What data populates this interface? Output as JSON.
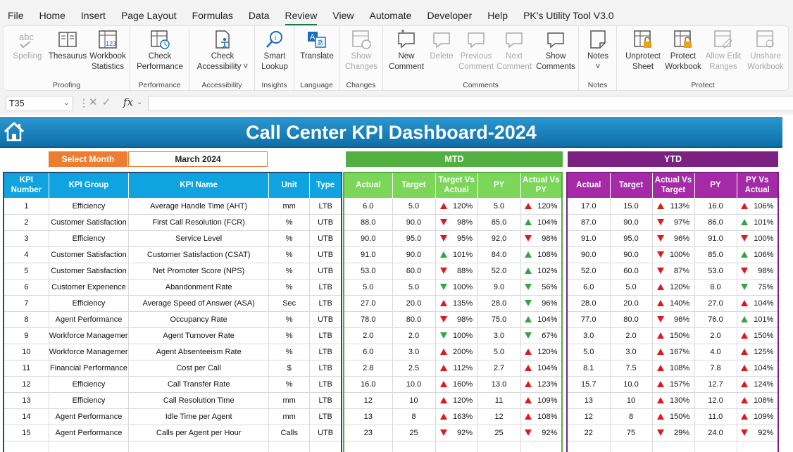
{
  "menu": [
    "File",
    "Home",
    "Insert",
    "Page Layout",
    "Formulas",
    "Data",
    "Review",
    "View",
    "Automate",
    "Developer",
    "Help",
    "PK's Utility Tool V3.0"
  ],
  "menu_active": "Review",
  "ribbon": {
    "groups": [
      {
        "name": "Proofing",
        "buttons": [
          {
            "label": "Spelling",
            "icon": "spelling-icon",
            "disabled": true
          },
          {
            "label": "Thesaurus",
            "icon": "thesaurus-icon"
          },
          {
            "label": "Workbook\nStatistics",
            "icon": "workbook-statistics-icon"
          }
        ]
      },
      {
        "name": "Performance",
        "buttons": [
          {
            "label": "Check\nPerformance",
            "icon": "check-performance-icon"
          }
        ]
      },
      {
        "name": "Accessibility",
        "buttons": [
          {
            "label": "Check\nAccessibility ˅",
            "icon": "check-accessibility-icon"
          }
        ]
      },
      {
        "name": "Insights",
        "buttons": [
          {
            "label": "Smart\nLookup",
            "icon": "smart-lookup-icon"
          }
        ]
      },
      {
        "name": "Language",
        "buttons": [
          {
            "label": "Translate",
            "icon": "translate-icon"
          }
        ]
      },
      {
        "name": "Changes",
        "buttons": [
          {
            "label": "Show\nChanges",
            "icon": "show-changes-icon",
            "disabled": true
          }
        ]
      },
      {
        "name": "Comments",
        "buttons": [
          {
            "label": "New\nComment",
            "icon": "new-comment-icon"
          },
          {
            "label": "Delete",
            "icon": "delete-comment-icon",
            "disabled": true
          },
          {
            "label": "Previous\nComment",
            "icon": "previous-comment-icon",
            "disabled": true
          },
          {
            "label": "Next\nComment",
            "icon": "next-comment-icon",
            "disabled": true
          },
          {
            "label": "Show\nComments",
            "icon": "show-comments-icon"
          }
        ]
      },
      {
        "name": "Notes",
        "buttons": [
          {
            "label": "Notes\n˅",
            "icon": "notes-icon"
          }
        ]
      },
      {
        "name": "Protect",
        "buttons": [
          {
            "label": "Unprotect\nSheet",
            "icon": "unprotect-sheet-icon"
          },
          {
            "label": "Protect\nWorkbook",
            "icon": "protect-workbook-icon"
          },
          {
            "label": "Allow Edit\nRanges",
            "icon": "allow-edit-ranges-icon",
            "disabled": true
          },
          {
            "label": "Unshare\nWorkbook",
            "icon": "unshare-workbook-icon",
            "disabled": true
          }
        ]
      }
    ]
  },
  "formula_bar": {
    "name_box": "T35",
    "fx": "fx",
    "value": ""
  },
  "dashboard": {
    "title": "Call Center KPI Dashboard-2024",
    "select_month_label": "Select Month",
    "select_month_value": "March 2024",
    "mtd_label": "MTD",
    "ytd_label": "YTD",
    "main_headers": [
      "KPI Number",
      "KPI Group",
      "KPI Name",
      "Unit",
      "Type"
    ],
    "mtd_headers": [
      "Actual",
      "Target",
      "Target Vs Actual",
      "PY",
      "Actual Vs PY"
    ],
    "ytd_headers": [
      "Actual",
      "Target",
      "Actual Vs Target",
      "PY",
      "PY Vs Actual"
    ],
    "colors": {
      "banner": "#1a82bd",
      "select": "#ed7d31",
      "mtd": "#52b043",
      "ytd": "#7b2182",
      "up_red": "#e0191d",
      "green": "#37a444"
    }
  },
  "rows": [
    {
      "n": "1",
      "group": "Efficiency",
      "name": "Average Handle Time (AHT)",
      "unit": "mm",
      "type": "LTB",
      "mtd": {
        "actual": "6.0",
        "target": "5.0",
        "tva": "120%",
        "tva_dir": "up",
        "tva_col": "red",
        "py": "5.0",
        "avp": "120%",
        "avp_dir": "up",
        "avp_col": "red"
      },
      "ytd": {
        "actual": "17.0",
        "target": "15.0",
        "avt": "113%",
        "avt_dir": "up",
        "avt_col": "red",
        "py": "16.0",
        "pva": "106%",
        "pva_dir": "up",
        "pva_col": "red"
      }
    },
    {
      "n": "2",
      "group": "Customer Satisfaction",
      "name": "First Call Resolution (FCR)",
      "unit": "%",
      "type": "UTB",
      "mtd": {
        "actual": "88.0",
        "target": "90.0",
        "tva": "98%",
        "tva_dir": "down",
        "tva_col": "red",
        "py": "85.0",
        "avp": "104%",
        "avp_dir": "up",
        "avp_col": "green"
      },
      "ytd": {
        "actual": "87.0",
        "target": "90.0",
        "avt": "97%",
        "avt_dir": "down",
        "avt_col": "red",
        "py": "86.0",
        "pva": "101%",
        "pva_dir": "up",
        "pva_col": "green"
      }
    },
    {
      "n": "3",
      "group": "Efficiency",
      "name": "Service Level",
      "unit": "%",
      "type": "UTB",
      "mtd": {
        "actual": "90.0",
        "target": "95.0",
        "tva": "95%",
        "tva_dir": "down",
        "tva_col": "red",
        "py": "92.0",
        "avp": "98%",
        "avp_dir": "down",
        "avp_col": "red"
      },
      "ytd": {
        "actual": "91.0",
        "target": "95.0",
        "avt": "96%",
        "avt_dir": "down",
        "avt_col": "red",
        "py": "91.0",
        "pva": "100%",
        "pva_dir": "down",
        "pva_col": "red"
      }
    },
    {
      "n": "4",
      "group": "Customer Satisfaction",
      "name": "Customer Satisfaction (CSAT)",
      "unit": "%",
      "type": "UTB",
      "mtd": {
        "actual": "91.0",
        "target": "90.0",
        "tva": "101%",
        "tva_dir": "up",
        "tva_col": "green",
        "py": "84.0",
        "avp": "108%",
        "avp_dir": "up",
        "avp_col": "green"
      },
      "ytd": {
        "actual": "90.0",
        "target": "90.0",
        "avt": "100%",
        "avt_dir": "down",
        "avt_col": "red",
        "py": "85.0",
        "pva": "106%",
        "pva_dir": "up",
        "pva_col": "green"
      }
    },
    {
      "n": "5",
      "group": "Customer Satisfaction",
      "name": "Net Promoter Score (NPS)",
      "unit": "%",
      "type": "UTB",
      "mtd": {
        "actual": "53.0",
        "target": "60.0",
        "tva": "88%",
        "tva_dir": "down",
        "tva_col": "red",
        "py": "52.0",
        "avp": "102%",
        "avp_dir": "up",
        "avp_col": "green"
      },
      "ytd": {
        "actual": "52.0",
        "target": "60.0",
        "avt": "87%",
        "avt_dir": "down",
        "avt_col": "red",
        "py": "53.0",
        "pva": "98%",
        "pva_dir": "down",
        "pva_col": "red"
      }
    },
    {
      "n": "6",
      "group": "Customer Experience",
      "name": "Abandonment Rate",
      "unit": "%",
      "type": "LTB",
      "mtd": {
        "actual": "5.0",
        "target": "5.0",
        "tva": "100%",
        "tva_dir": "down",
        "tva_col": "green",
        "py": "9.0",
        "avp": "56%",
        "avp_dir": "down",
        "avp_col": "green"
      },
      "ytd": {
        "actual": "6.0",
        "target": "5.0",
        "avt": "120%",
        "avt_dir": "up",
        "avt_col": "red",
        "py": "8.0",
        "pva": "75%",
        "pva_dir": "down",
        "pva_col": "green"
      }
    },
    {
      "n": "7",
      "group": "Efficiency",
      "name": "Average Speed of Answer (ASA)",
      "unit": "Sec",
      "type": "LTB",
      "mtd": {
        "actual": "27.0",
        "target": "20.0",
        "tva": "135%",
        "tva_dir": "up",
        "tva_col": "red",
        "py": "28.0",
        "avp": "96%",
        "avp_dir": "down",
        "avp_col": "green"
      },
      "ytd": {
        "actual": "28.0",
        "target": "20.0",
        "avt": "140%",
        "avt_dir": "up",
        "avt_col": "red",
        "py": "27.0",
        "pva": "104%",
        "pva_dir": "up",
        "pva_col": "red"
      }
    },
    {
      "n": "8",
      "group": "Agent Performance",
      "name": "Occupancy Rate",
      "unit": "%",
      "type": "UTB",
      "mtd": {
        "actual": "78.0",
        "target": "80.0",
        "tva": "98%",
        "tva_dir": "down",
        "tva_col": "red",
        "py": "75.0",
        "avp": "104%",
        "avp_dir": "up",
        "avp_col": "green"
      },
      "ytd": {
        "actual": "77.0",
        "target": "80.0",
        "avt": "96%",
        "avt_dir": "down",
        "avt_col": "red",
        "py": "76.0",
        "pva": "101%",
        "pva_dir": "up",
        "pva_col": "green"
      }
    },
    {
      "n": "9",
      "group": "Workforce Management",
      "name": "Agent Turnover Rate",
      "unit": "%",
      "type": "LTB",
      "mtd": {
        "actual": "2.0",
        "target": "2.0",
        "tva": "100%",
        "tva_dir": "down",
        "tva_col": "green",
        "py": "3.0",
        "avp": "67%",
        "avp_dir": "down",
        "avp_col": "green"
      },
      "ytd": {
        "actual": "3.0",
        "target": "2.0",
        "avt": "150%",
        "avt_dir": "up",
        "avt_col": "red",
        "py": "2.0",
        "pva": "150%",
        "pva_dir": "up",
        "pva_col": "red"
      }
    },
    {
      "n": "10",
      "group": "Workforce Management",
      "name": "Agent Absenteeism Rate",
      "unit": "%",
      "type": "LTB",
      "mtd": {
        "actual": "6.0",
        "target": "3.0",
        "tva": "200%",
        "tva_dir": "up",
        "tva_col": "red",
        "py": "5.0",
        "avp": "120%",
        "avp_dir": "up",
        "avp_col": "red"
      },
      "ytd": {
        "actual": "5.0",
        "target": "3.0",
        "avt": "167%",
        "avt_dir": "up",
        "avt_col": "red",
        "py": "4.0",
        "pva": "125%",
        "pva_dir": "up",
        "pva_col": "red"
      }
    },
    {
      "n": "11",
      "group": "Financial Performance",
      "name": "Cost per Call",
      "unit": "$",
      "type": "LTB",
      "mtd": {
        "actual": "2.8",
        "target": "2.5",
        "tva": "112%",
        "tva_dir": "up",
        "tva_col": "red",
        "py": "2.7",
        "avp": "104%",
        "avp_dir": "up",
        "avp_col": "red"
      },
      "ytd": {
        "actual": "8.1",
        "target": "7.5",
        "avt": "108%",
        "avt_dir": "up",
        "avt_col": "red",
        "py": "7.8",
        "pva": "104%",
        "pva_dir": "up",
        "pva_col": "red"
      }
    },
    {
      "n": "12",
      "group": "Efficiency",
      "name": "Call Transfer Rate",
      "unit": "%",
      "type": "LTB",
      "mtd": {
        "actual": "16.0",
        "target": "10.0",
        "tva": "160%",
        "tva_dir": "up",
        "tva_col": "red",
        "py": "13.0",
        "avp": "123%",
        "avp_dir": "up",
        "avp_col": "red"
      },
      "ytd": {
        "actual": "15.7",
        "target": "10.0",
        "avt": "157%",
        "avt_dir": "up",
        "avt_col": "red",
        "py": "12.7",
        "pva": "124%",
        "pva_dir": "up",
        "pva_col": "red"
      }
    },
    {
      "n": "13",
      "group": "Efficiency",
      "name": "Call Resolution Time",
      "unit": "mm",
      "type": "LTB",
      "mtd": {
        "actual": "12",
        "target": "10",
        "tva": "120%",
        "tva_dir": "up",
        "tva_col": "red",
        "py": "11",
        "avp": "109%",
        "avp_dir": "up",
        "avp_col": "red"
      },
      "ytd": {
        "actual": "13",
        "target": "10",
        "avt": "130%",
        "avt_dir": "up",
        "avt_col": "red",
        "py": "12.0",
        "pva": "108%",
        "pva_dir": "up",
        "pva_col": "red"
      }
    },
    {
      "n": "14",
      "group": "Agent Performance",
      "name": "Idle Time per Agent",
      "unit": "mm",
      "type": "LTB",
      "mtd": {
        "actual": "13",
        "target": "8",
        "tva": "163%",
        "tva_dir": "up",
        "tva_col": "red",
        "py": "12",
        "avp": "108%",
        "avp_dir": "up",
        "avp_col": "red"
      },
      "ytd": {
        "actual": "12",
        "target": "8",
        "avt": "150%",
        "avt_dir": "up",
        "avt_col": "red",
        "py": "11.0",
        "pva": "109%",
        "pva_dir": "up",
        "pva_col": "red"
      }
    },
    {
      "n": "15",
      "group": "Agent Performance",
      "name": "Calls per Agent per Hour",
      "unit": "Calls",
      "type": "UTB",
      "mtd": {
        "actual": "23",
        "target": "25",
        "tva": "92%",
        "tva_dir": "down",
        "tva_col": "red",
        "py": "25",
        "avp": "92%",
        "avp_dir": "down",
        "avp_col": "red"
      },
      "ytd": {
        "actual": "22",
        "target": "75",
        "avt": "29%",
        "avt_dir": "down",
        "avt_col": "red",
        "py": "24.0",
        "pva": "92%",
        "pva_dir": "down",
        "pva_col": "red"
      }
    }
  ]
}
